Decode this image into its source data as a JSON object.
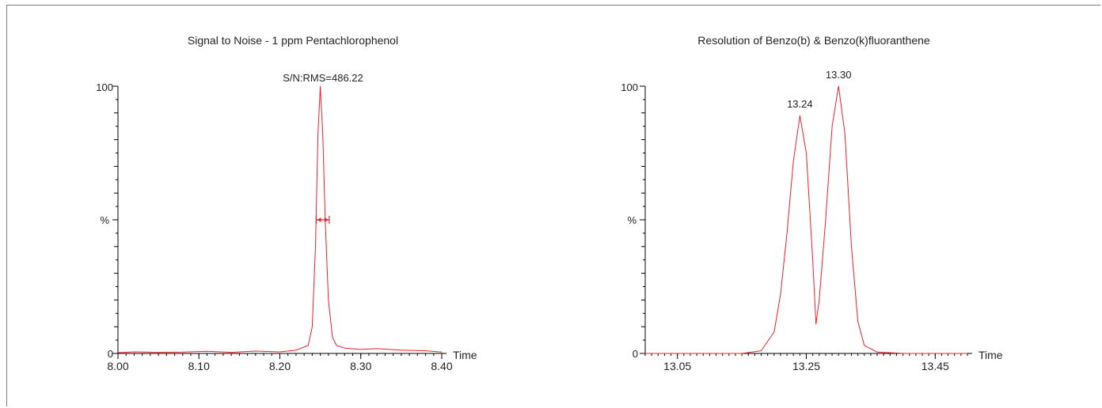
{
  "colors": {
    "trace": "#e8232a",
    "axis": "#000000",
    "text": "#222222"
  },
  "chart_data": [
    {
      "type": "line",
      "title": "Signal to Noise - 1 ppm Pentachlorophenol",
      "xlabel": "Time",
      "ylabel": "%",
      "xlim": [
        8.0,
        8.4
      ],
      "ylim": [
        0,
        100
      ],
      "x_ticks": [
        8.0,
        8.1,
        8.2,
        8.3,
        8.4
      ],
      "x_tick_labels": [
        "8.00",
        "8.10",
        "8.20",
        "8.30",
        "8.40"
      ],
      "y_tick_labels": [
        "0",
        "100"
      ],
      "annotations": [
        {
          "text": "S/N:RMS=486.22",
          "x": 8.25,
          "y": 100,
          "type": "label"
        },
        {
          "text": "",
          "x": [
            8.245,
            8.261
          ],
          "y": 50,
          "type": "width-arrow"
        }
      ],
      "series": [
        {
          "x": [
            8.0,
            8.02,
            8.05,
            8.08,
            8.11,
            8.14,
            8.17,
            8.2,
            8.22,
            8.235,
            8.24,
            8.244,
            8.247,
            8.25,
            8.253,
            8.256,
            8.26,
            8.265,
            8.27,
            8.28,
            8.3,
            8.32,
            8.35,
            8.38,
            8.4
          ],
          "y": [
            0.3,
            0.6,
            0.4,
            0.5,
            0.8,
            0.4,
            0.9,
            0.6,
            1.2,
            3,
            10,
            40,
            82,
            100,
            82,
            50,
            20,
            6,
            3,
            2,
            1.5,
            1.8,
            1.2,
            1.0,
            0.5
          ]
        }
      ]
    },
    {
      "type": "line",
      "title": "Resolution of Benzo(b) & Benzo(k)fluoranthene",
      "xlabel": "Time",
      "ylabel": "%",
      "xlim": [
        13.0,
        13.5
      ],
      "ylim": [
        0,
        100
      ],
      "x_ticks": [
        13.05,
        13.25,
        13.45
      ],
      "x_tick_labels": [
        "13.05",
        "13.25",
        "13.45"
      ],
      "y_tick_labels": [
        "0",
        "100"
      ],
      "annotations": [
        {
          "text": "13.24",
          "x": 13.24,
          "y": 89,
          "type": "label"
        },
        {
          "text": "13.30",
          "x": 13.3,
          "y": 100,
          "type": "label"
        }
      ],
      "series": [
        {
          "x": [
            13.0,
            13.15,
            13.18,
            13.2,
            13.21,
            13.22,
            13.23,
            13.24,
            13.25,
            13.26,
            13.265,
            13.27,
            13.28,
            13.29,
            13.3,
            13.31,
            13.32,
            13.33,
            13.34,
            13.36,
            13.4,
            13.5
          ],
          "y": [
            0,
            0,
            1,
            8,
            22,
            45,
            72,
            89,
            75,
            35,
            11,
            20,
            50,
            85,
            100,
            82,
            40,
            12,
            3,
            0.5,
            0,
            0
          ]
        }
      ]
    }
  ]
}
